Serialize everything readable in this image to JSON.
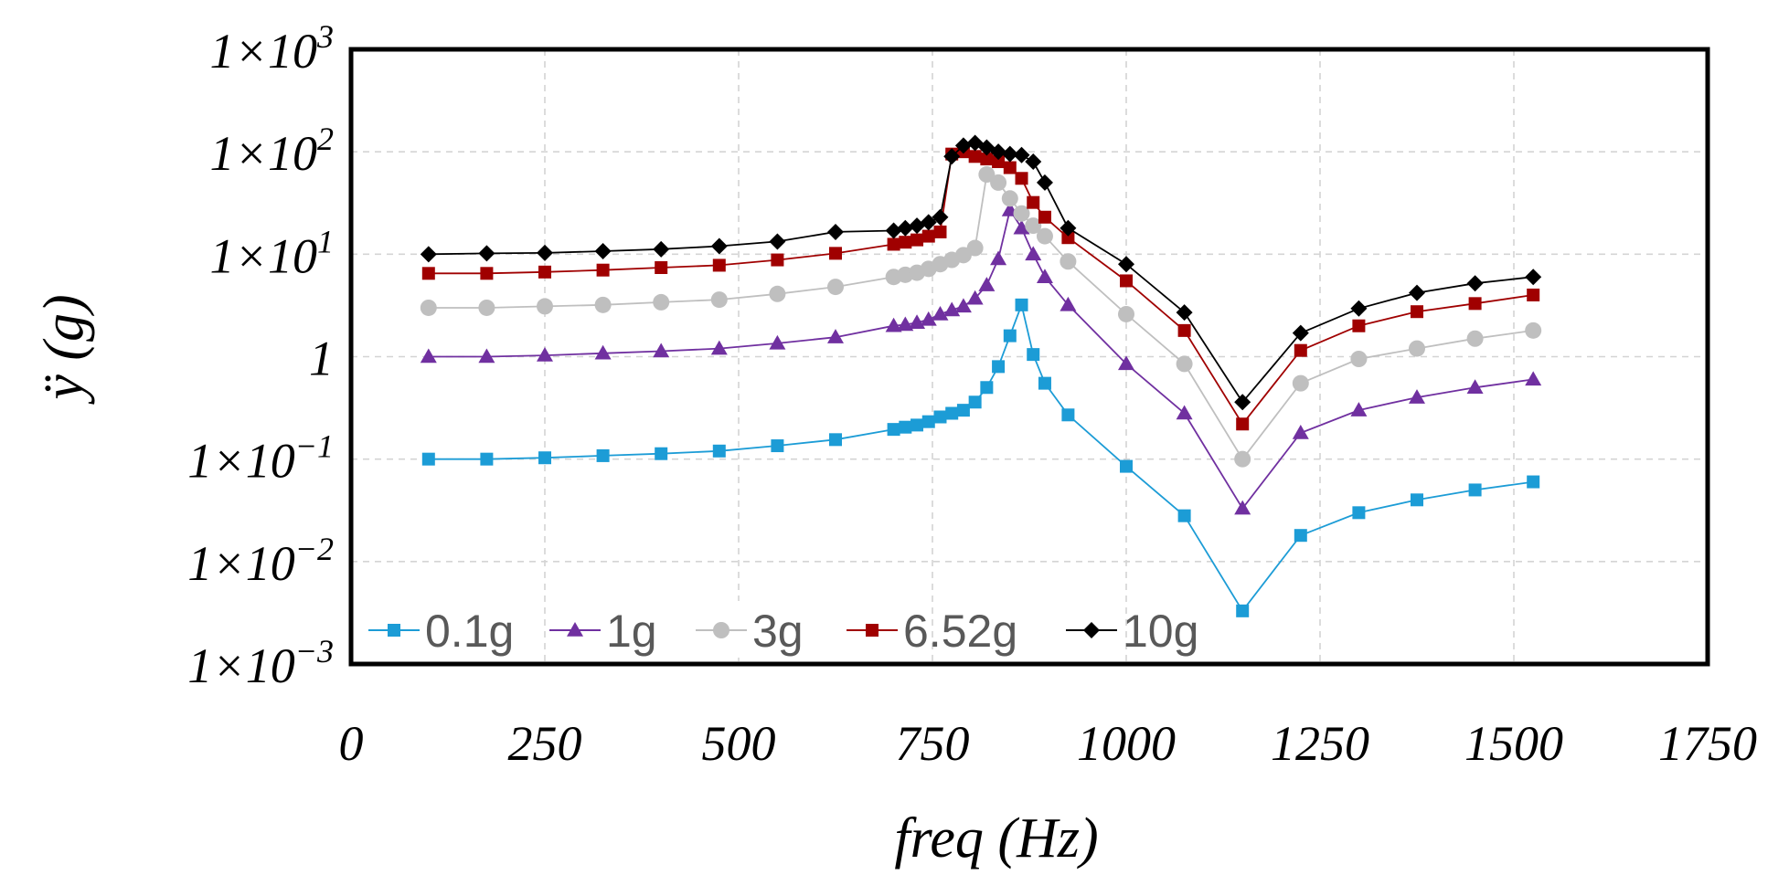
{
  "chart_data": {
    "type": "line",
    "title": "",
    "xlabel": "freq (Hz)",
    "ylabel": "ÿ (g)",
    "xlim": [
      0,
      1750
    ],
    "ylim": [
      0.001,
      1000
    ],
    "yscale": "log",
    "grid": true,
    "legend_position": "bottom-left",
    "x_ticks": [
      0,
      250,
      500,
      750,
      1000,
      1250,
      1500,
      1750
    ],
    "x_tick_labels": [
      "0",
      "250",
      "500",
      "750",
      "1000",
      "1250",
      "1500",
      "1750"
    ],
    "y_ticks": [
      {
        "value": 0.001,
        "base": "1×10",
        "exp": "−3"
      },
      {
        "value": 0.01,
        "base": "1×10",
        "exp": "−2"
      },
      {
        "value": 0.1,
        "base": "1×10",
        "exp": "−1"
      },
      {
        "value": 1,
        "base": "1",
        "exp": ""
      },
      {
        "value": 10,
        "base": "1×10",
        "exp": "1"
      },
      {
        "value": 100,
        "base": "1×10",
        "exp": "2"
      },
      {
        "value": 1000,
        "base": "1×10",
        "exp": "3"
      }
    ],
    "series": [
      {
        "name": "0.1g",
        "color": "#1c9cd6",
        "marker": "square",
        "points": [
          [
            100,
            0.1
          ],
          [
            175,
            0.1
          ],
          [
            250,
            0.103
          ],
          [
            325,
            0.108
          ],
          [
            400,
            0.113
          ],
          [
            475,
            0.12
          ],
          [
            550,
            0.135
          ],
          [
            625,
            0.155
          ],
          [
            700,
            0.195
          ],
          [
            715,
            0.205
          ],
          [
            730,
            0.215
          ],
          [
            745,
            0.232
          ],
          [
            760,
            0.258
          ],
          [
            775,
            0.28
          ],
          [
            790,
            0.3
          ],
          [
            805,
            0.36
          ],
          [
            820,
            0.5
          ],
          [
            835,
            0.8
          ],
          [
            850,
            1.6
          ],
          [
            865,
            3.2
          ],
          [
            880,
            1.05
          ],
          [
            895,
            0.55
          ],
          [
            925,
            0.27
          ],
          [
            1000,
            0.085
          ],
          [
            1075,
            0.028
          ],
          [
            1150,
            0.0033
          ],
          [
            1225,
            0.018
          ],
          [
            1300,
            0.03
          ],
          [
            1375,
            0.04
          ],
          [
            1450,
            0.05
          ],
          [
            1525,
            0.06
          ]
        ]
      },
      {
        "name": "1g",
        "color": "#7030a0",
        "marker": "triangle",
        "points": [
          [
            100,
            1
          ],
          [
            175,
            1
          ],
          [
            250,
            1.03
          ],
          [
            325,
            1.08
          ],
          [
            400,
            1.13
          ],
          [
            475,
            1.2
          ],
          [
            550,
            1.35
          ],
          [
            625,
            1.55
          ],
          [
            700,
            2.0
          ],
          [
            715,
            2.05
          ],
          [
            730,
            2.15
          ],
          [
            745,
            2.3
          ],
          [
            760,
            2.6
          ],
          [
            775,
            2.85
          ],
          [
            790,
            3.1
          ],
          [
            805,
            3.7
          ],
          [
            820,
            5.0
          ],
          [
            835,
            9.0
          ],
          [
            850,
            27
          ],
          [
            865,
            18
          ],
          [
            880,
            10
          ],
          [
            895,
            6
          ],
          [
            925,
            3.2
          ],
          [
            1000,
            0.85
          ],
          [
            1075,
            0.28
          ],
          [
            1150,
            0.033
          ],
          [
            1225,
            0.18
          ],
          [
            1300,
            0.3
          ],
          [
            1375,
            0.4
          ],
          [
            1450,
            0.5
          ],
          [
            1525,
            0.6
          ]
        ]
      },
      {
        "name": "3g",
        "color": "#bfbfbf",
        "marker": "circle",
        "points": [
          [
            100,
            3
          ],
          [
            175,
            3
          ],
          [
            250,
            3.1
          ],
          [
            325,
            3.2
          ],
          [
            400,
            3.4
          ],
          [
            475,
            3.6
          ],
          [
            550,
            4.1
          ],
          [
            625,
            4.8
          ],
          [
            700,
            6.0
          ],
          [
            715,
            6.3
          ],
          [
            730,
            6.6
          ],
          [
            745,
            7.2
          ],
          [
            760,
            8.0
          ],
          [
            775,
            8.8
          ],
          [
            790,
            9.8
          ],
          [
            805,
            11.5
          ],
          [
            820,
            60
          ],
          [
            835,
            50
          ],
          [
            850,
            35
          ],
          [
            865,
            25
          ],
          [
            880,
            19
          ],
          [
            895,
            15
          ],
          [
            925,
            8.5
          ],
          [
            1000,
            2.6
          ],
          [
            1075,
            0.85
          ],
          [
            1150,
            0.1
          ],
          [
            1225,
            0.55
          ],
          [
            1300,
            0.95
          ],
          [
            1375,
            1.2
          ],
          [
            1450,
            1.5
          ],
          [
            1525,
            1.8
          ]
        ]
      },
      {
        "name": "6.52g",
        "color": "#a00000",
        "marker": "square",
        "points": [
          [
            100,
            6.5
          ],
          [
            175,
            6.5
          ],
          [
            250,
            6.7
          ],
          [
            325,
            7.0
          ],
          [
            400,
            7.4
          ],
          [
            475,
            7.8
          ],
          [
            550,
            8.8
          ],
          [
            625,
            10.2
          ],
          [
            700,
            12.5
          ],
          [
            715,
            13.1
          ],
          [
            730,
            13.8
          ],
          [
            745,
            15.0
          ],
          [
            760,
            16.5
          ],
          [
            775,
            95
          ],
          [
            790,
            100
          ],
          [
            805,
            90
          ],
          [
            820,
            85
          ],
          [
            835,
            80
          ],
          [
            850,
            70
          ],
          [
            865,
            55
          ],
          [
            880,
            32
          ],
          [
            895,
            23
          ],
          [
            925,
            14.5
          ],
          [
            1000,
            5.5
          ],
          [
            1075,
            1.8
          ],
          [
            1150,
            0.22
          ],
          [
            1225,
            1.15
          ],
          [
            1300,
            2.0
          ],
          [
            1375,
            2.75
          ],
          [
            1450,
            3.3
          ],
          [
            1525,
            4.0
          ]
        ]
      },
      {
        "name": "10g",
        "color": "#000000",
        "marker": "diamond",
        "points": [
          [
            100,
            10
          ],
          [
            175,
            10.2
          ],
          [
            250,
            10.3
          ],
          [
            325,
            10.7
          ],
          [
            400,
            11.2
          ],
          [
            475,
            12
          ],
          [
            550,
            13.3
          ],
          [
            625,
            16.5
          ],
          [
            700,
            17
          ],
          [
            715,
            18
          ],
          [
            730,
            19
          ],
          [
            745,
            20.5
          ],
          [
            760,
            23
          ],
          [
            775,
            90
          ],
          [
            790,
            115
          ],
          [
            805,
            122
          ],
          [
            820,
            110
          ],
          [
            835,
            100
          ],
          [
            850,
            95
          ],
          [
            865,
            93
          ],
          [
            880,
            80
          ],
          [
            895,
            50
          ],
          [
            925,
            18
          ],
          [
            1000,
            8.0
          ],
          [
            1075,
            2.7
          ],
          [
            1150,
            0.36
          ],
          [
            1225,
            1.7
          ],
          [
            1300,
            2.95
          ],
          [
            1375,
            4.2
          ],
          [
            1450,
            5.2
          ],
          [
            1525,
            6.0
          ]
        ]
      }
    ]
  }
}
